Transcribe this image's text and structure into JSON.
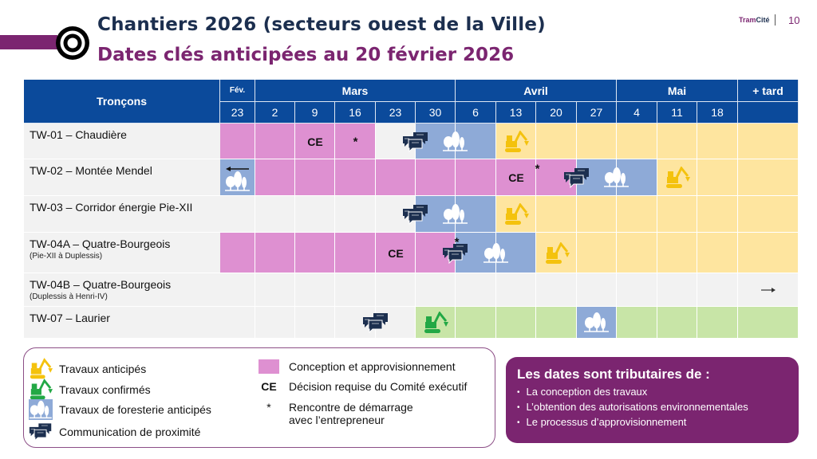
{
  "header": {
    "title": "Chantiers 2026 (secteurs ouest de la Ville)",
    "subtitle": "Dates clés anticipées au 20 février 2026",
    "brand_pre": "Tram",
    "brand_post": "Cité",
    "page_number": "10"
  },
  "colors": {
    "header": "#0b4a9b",
    "P": "#de90d1",
    "B": "#8eaad7",
    "Y": "#fee59f",
    "G": "#c8e5a7",
    "N": "#f2f2f2",
    "excavator_anticipated": "#f4c20d",
    "excavator_confirmed": "#22a845",
    "comm": "#1c2f4f"
  },
  "table": {
    "row_header": "Tronçons",
    "months": [
      {
        "label": "Fév.",
        "span": 1
      },
      {
        "label": "Mars",
        "span": 5
      },
      {
        "label": "Avril",
        "span": 4
      },
      {
        "label": "Mai",
        "span": 3
      },
      {
        "label": "+ tard",
        "span": 1
      }
    ],
    "weeks": [
      "23",
      "2",
      "9",
      "16",
      "23",
      "30",
      "6",
      "13",
      "20",
      "27",
      "4",
      "11",
      "18",
      ""
    ],
    "rows": [
      {
        "name": "TW-01 – Chaudière",
        "sub": "",
        "cells": [
          "P",
          "P",
          "P",
          "P",
          "N",
          "B",
          "B",
          "Y",
          "Y",
          "Y",
          "Y",
          "Y",
          "Y",
          "Y"
        ],
        "markers": [
          {
            "icon": "ce",
            "col": 2
          },
          {
            "icon": "star",
            "col": 3
          },
          {
            "icon": "comm",
            "col": 5,
            "edge": "start"
          },
          {
            "icon": "trees",
            "col": 6,
            "edge": "start"
          },
          {
            "icon": "excavator-anticipated",
            "col": 7
          }
        ]
      },
      {
        "name": "TW-02 – Montée Mendel",
        "sub": "",
        "cells": [
          "B",
          "P",
          "P",
          "P",
          "P",
          "P",
          "P",
          "P",
          "P",
          "B",
          "B",
          "Y",
          "Y",
          "Y"
        ],
        "markers": [
          {
            "icon": "arrow-left",
            "col": 0,
            "pos": "top"
          },
          {
            "icon": "trees",
            "col": 0,
            "pos": "low"
          },
          {
            "icon": "ce",
            "col": 7
          },
          {
            "icon": "star",
            "col": 8,
            "pos": "top"
          },
          {
            "icon": "comm",
            "col": 9,
            "edge": "start"
          },
          {
            "icon": "trees",
            "col": 10,
            "edge": "start"
          },
          {
            "icon": "excavator-anticipated",
            "col": 11
          }
        ]
      },
      {
        "name": "TW-03 – Corridor énergie Pie-XII",
        "sub": "",
        "cells": [
          "N",
          "N",
          "N",
          "N",
          "N",
          "B",
          "B",
          "Y",
          "Y",
          "Y",
          "Y",
          "Y",
          "Y",
          "Y"
        ],
        "markers": [
          {
            "icon": "comm",
            "col": 5,
            "edge": "start"
          },
          {
            "icon": "trees",
            "col": 6,
            "edge": "start"
          },
          {
            "icon": "excavator-anticipated",
            "col": 7
          }
        ]
      },
      {
        "name": "TW-04A – Quatre-Bourgeois",
        "sub": "(Pie-XII à Duplessis)",
        "cells": [
          "P",
          "P",
          "P",
          "P",
          "P",
          "P",
          "B",
          "B",
          "Y",
          "Y",
          "Y",
          "Y",
          "Y",
          "Y"
        ],
        "markers": [
          {
            "icon": "ce",
            "col": 4
          },
          {
            "icon": "comm",
            "col": 6,
            "edge": "start"
          },
          {
            "icon": "star",
            "col": 6,
            "pos": "top"
          },
          {
            "icon": "trees",
            "col": 7,
            "edge": "start"
          },
          {
            "icon": "excavator-anticipated",
            "col": 8
          }
        ]
      },
      {
        "name": "TW-04B – Quatre-Bourgeois",
        "sub": "(Duplessis à Henri-IV)",
        "cells": [
          "N",
          "N",
          "N",
          "N",
          "N",
          "N",
          "N",
          "N",
          "N",
          "N",
          "N",
          "N",
          "N",
          "N"
        ],
        "markers": [
          {
            "icon": "arrow-right",
            "col": 13
          }
        ]
      },
      {
        "name": "TW-07 – Laurier",
        "sub": "",
        "cells": [
          "N",
          "N",
          "N",
          "N",
          "N",
          "G",
          "G",
          "G",
          "G",
          "B",
          "G",
          "G",
          "G",
          "G"
        ],
        "markers": [
          {
            "icon": "comm",
            "col": 4,
            "edge": "start"
          },
          {
            "icon": "excavator-confirmed",
            "col": 5
          },
          {
            "icon": "trees",
            "col": 9
          }
        ]
      }
    ]
  },
  "legend": {
    "anticipated": "Travaux anticipés",
    "confirmed": "Travaux confirmés",
    "forestry": "Travaux de foresterie anticipés",
    "comm": "Communication de proximité",
    "design": "Conception et approvisionnement",
    "ce_symbol": "CE",
    "ce": "Décision requise du Comité exécutif",
    "star_symbol": "*",
    "kickoff_1": "Rencontre de démarrage",
    "kickoff_2": "avec l’entrepreneur"
  },
  "note": {
    "title": "Les dates sont tributaires de :",
    "items": [
      "La conception des travaux",
      "L’obtention des autorisations environnementales",
      "Le processus d’approvisionnement"
    ]
  }
}
